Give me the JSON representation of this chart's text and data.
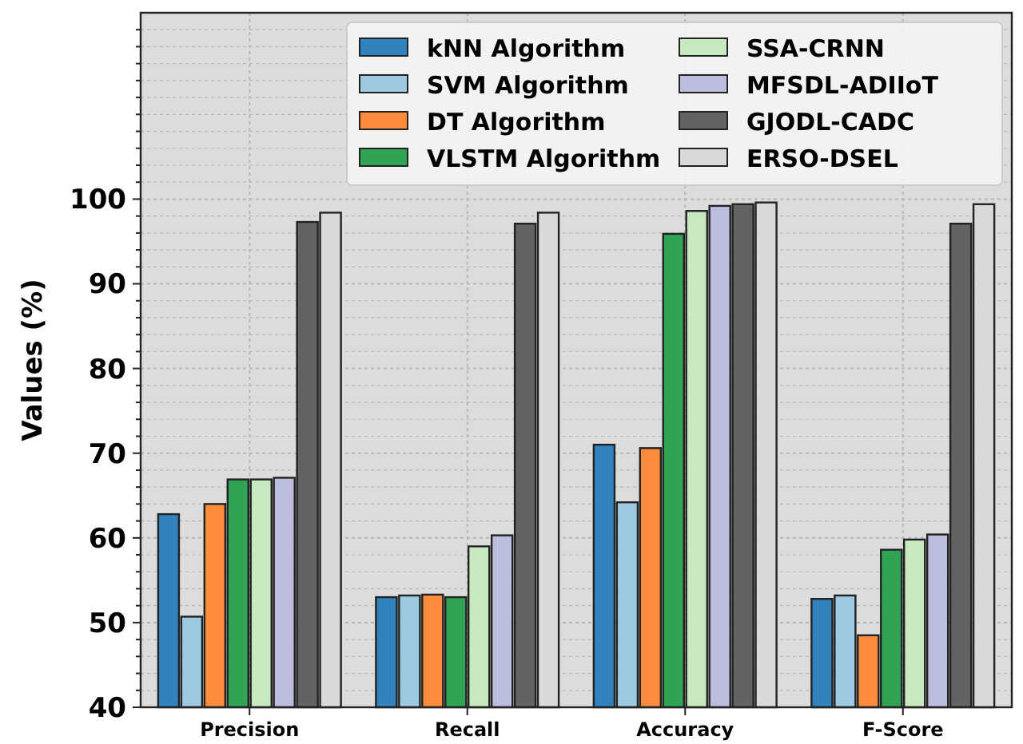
{
  "chart_data": {
    "type": "bar",
    "ylabel": "Values (%)",
    "categories": [
      "Precision",
      "Recall",
      "Accuracy",
      "F-Score"
    ],
    "series": [
      {
        "name": "kNN Algorithm",
        "color": "#3182bd",
        "values": [
          62.8,
          53,
          71,
          52.8
        ]
      },
      {
        "name": "SVM Algorithm",
        "color": "#9ecae1",
        "values": [
          50.7,
          53.2,
          64.2,
          53.2
        ]
      },
      {
        "name": "DT Algorithm",
        "color": "#fd8d3c",
        "values": [
          64,
          53.3,
          70.6,
          48.5
        ]
      },
      {
        "name": "VLSTM Algorithm",
        "color": "#31a354",
        "values": [
          66.9,
          53,
          95.9,
          58.6
        ]
      },
      {
        "name": "SSA-CRNN",
        "color": "#c7e9c0",
        "values": [
          66.9,
          59,
          98.6,
          59.8
        ]
      },
      {
        "name": "MFSDL-ADIIoT",
        "color": "#bcbddc",
        "values": [
          67.1,
          60.3,
          99.2,
          60.4
        ]
      },
      {
        "name": "GJODL-CADC",
        "color": "#636363",
        "values": [
          97.3,
          97.1,
          99.4,
          97.1
        ]
      },
      {
        "name": "ERSO-DSEL",
        "color": "#d9d9d9",
        "values": [
          98.4,
          98.4,
          99.6,
          99.4
        ]
      }
    ],
    "ylim": [
      40,
      122
    ],
    "yticks": [
      40,
      {
        "value": 42,
        "label": null
      },
      {
        "value": 44,
        "label": null
      },
      {
        "value": 46,
        "label": null
      },
      {
        "value": 48,
        "label": null
      },
      50,
      {
        "value": 52,
        "label": null
      },
      {
        "value": 54,
        "label": null
      },
      {
        "value": 56,
        "label": null
      },
      {
        "value": 58,
        "label": null
      },
      60,
      {
        "value": 62,
        "label": null
      },
      {
        "value": 64,
        "label": null
      },
      {
        "value": 66,
        "label": null
      },
      {
        "value": 68,
        "label": null
      },
      70,
      {
        "value": 72,
        "label": null
      },
      {
        "value": 74,
        "label": null
      },
      {
        "value": 76,
        "label": null
      },
      {
        "value": 78,
        "label": null
      },
      80,
      {
        "value": 82,
        "label": null
      },
      {
        "value": 84,
        "label": null
      },
      {
        "value": 86,
        "label": null
      },
      {
        "value": 88,
        "label": null
      },
      90,
      {
        "value": 92,
        "label": null
      },
      {
        "value": 94,
        "label": null
      },
      {
        "value": 96,
        "label": null
      },
      {
        "value": 98,
        "label": null
      },
      100,
      {
        "value": 102,
        "label": null
      },
      {
        "value": 104,
        "label": null
      },
      {
        "value": 106,
        "label": null
      },
      {
        "value": 108,
        "label": null
      },
      {
        "value": 110,
        "label": null
      },
      {
        "value": 112,
        "label": null
      },
      {
        "value": 114,
        "label": null
      },
      {
        "value": 116,
        "label": null
      },
      {
        "value": 118,
        "label": null
      },
      {
        "value": 120,
        "label": null
      }
    ],
    "grid": true,
    "legend": "top right"
  }
}
